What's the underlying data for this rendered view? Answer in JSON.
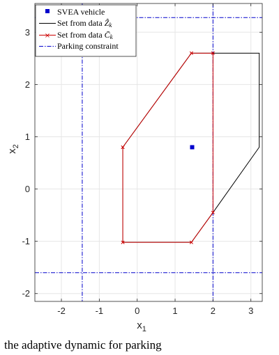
{
  "chart_data": {
    "type": "line",
    "title": "",
    "xlabel": "x",
    "xlabel_sub": "1",
    "ylabel": "x",
    "ylabel_sub": "2",
    "xlim": [
      -2.7,
      3.3
    ],
    "ylim": [
      -2.15,
      3.55
    ],
    "xticks": [
      -2,
      -1,
      0,
      1,
      2,
      3
    ],
    "yticks": [
      -2,
      -1,
      0,
      1,
      2,
      3
    ],
    "xtick_labels": [
      "-2",
      "-1",
      "0",
      "1",
      "2",
      "3"
    ],
    "ytick_labels": [
      "-2",
      "-1",
      "0",
      "1",
      "2",
      "3"
    ],
    "grid": true,
    "legend_position": "top-left",
    "legend": [
      {
        "label": "SVEA vehicle",
        "style": "blue-square-marker"
      },
      {
        "label": "Set from data Ȥ̂ₖ",
        "style": "black-line"
      },
      {
        "label": "Set from data C̄ₖ",
        "style": "red-line-x-marker"
      },
      {
        "label": "Parking constraint",
        "style": "blue-dashdot"
      }
    ],
    "legend_math": {
      "z_label_prefix": "Set from data ",
      "c_label_prefix": "Set from data "
    },
    "series": [
      {
        "name": "SVEA vehicle",
        "type": "scatter",
        "color": "#0000cc",
        "x": [
          1.45
        ],
        "y": [
          0.8
        ]
      },
      {
        "name": "Set from data Ẑ_k",
        "type": "polygon",
        "color": "#000000",
        "x": [
          -0.38,
          1.43,
          3.22,
          3.22,
          2.0,
          1.43,
          -0.38,
          -0.38
        ],
        "y": [
          0.8,
          2.6,
          2.6,
          0.8,
          -0.45,
          -1.02,
          -1.02,
          0.8
        ]
      },
      {
        "name": "Set from data C̄_k",
        "type": "polygon",
        "color": "#cc0000",
        "x": [
          -0.38,
          1.43,
          2.0,
          2.0,
          1.43,
          -0.38,
          -0.38
        ],
        "y": [
          0.8,
          2.6,
          2.6,
          -0.45,
          -1.02,
          -1.02,
          0.8
        ]
      }
    ],
    "constraints": {
      "name": "Parking constraint",
      "color": "#0000cc",
      "vertical_lines_x": [
        -1.45,
        2.0
      ],
      "horizontal_lines_y": [
        3.28,
        -1.6
      ]
    }
  },
  "caption": "the adaptive dynamic for parking"
}
